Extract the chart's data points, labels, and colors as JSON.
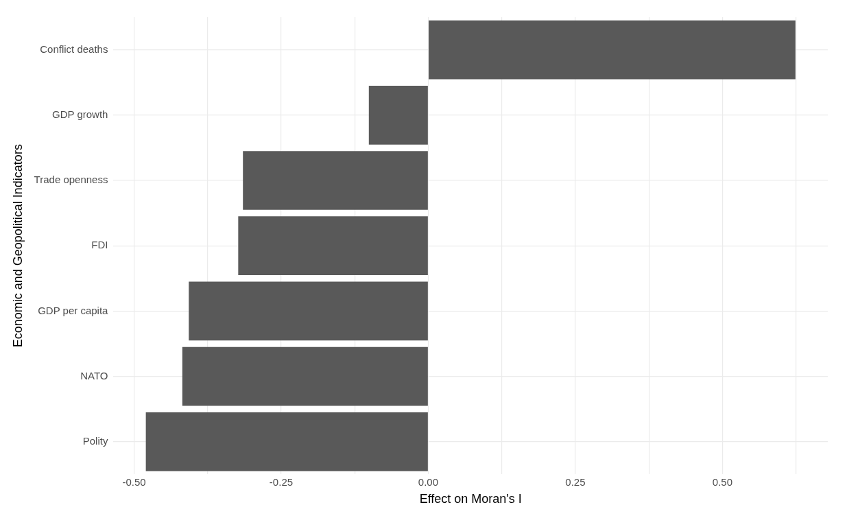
{
  "chart_data": {
    "type": "bar",
    "orientation": "horizontal",
    "xlabel": "Effect on Moran's I",
    "ylabel": "Economic and Geopolitical Indicators",
    "categories": [
      "Conflict deaths",
      "GDP growth",
      "Trade openness",
      "FDI",
      "GDP per capita",
      "NATO",
      "Polity"
    ],
    "values": [
      0.624,
      -0.101,
      -0.315,
      -0.323,
      -0.407,
      -0.418,
      -0.48
    ],
    "color": "#595959",
    "xlim": [
      -0.535,
      0.679
    ],
    "xticks": [
      {
        "value": -0.5,
        "label": "-0.50"
      },
      {
        "value": -0.375,
        "label": null
      },
      {
        "value": -0.25,
        "label": "-0.25"
      },
      {
        "value": -0.125,
        "label": null
      },
      {
        "value": 0,
        "label": "0.00"
      },
      {
        "value": 0.125,
        "label": null
      },
      {
        "value": 0.25,
        "label": "0.25"
      },
      {
        "value": 0.375,
        "label": null
      },
      {
        "value": 0.5,
        "label": "0.50"
      },
      {
        "value": 0.625,
        "label": null
      }
    ],
    "grid": true,
    "legend": false
  }
}
